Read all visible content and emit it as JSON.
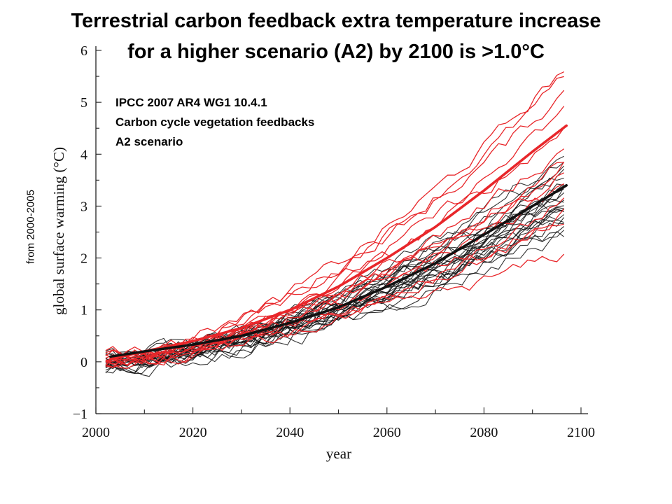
{
  "chart_data": {
    "type": "line",
    "title_lines": [
      "Terrestrial carbon feedback extra temperature increase",
      "for a higher scenario (A2) by 2100 is >1.0°C"
    ],
    "annotation_lines": [
      "IPCC 2007 AR4 WG1 10.4.1",
      "Carbon cycle vegetation feedbacks",
      "A2 scenario"
    ],
    "side_note": "from 2000-2005",
    "xlabel": "year",
    "ylabel": "global surface warming (°C)",
    "xlim": [
      2000,
      2100
    ],
    "ylim": [
      -1,
      6
    ],
    "x_ticks": [
      2000,
      2020,
      2040,
      2060,
      2080,
      2100
    ],
    "y_ticks": [
      -1,
      0,
      1,
      2,
      3,
      4,
      5,
      6
    ],
    "grid": false,
    "colors": {
      "with_feedback": "#e8262a",
      "without_feedback": "#111111"
    },
    "series": [
      {
        "x": [
          2003,
          2010,
          2020,
          2030,
          2040,
          2050,
          2060,
          2070,
          2080,
          2090,
          2097
        ],
        "y": [
          0.05,
          0.2,
          0.4,
          0.65,
          1.0,
          1.45,
          2.0,
          2.6,
          3.3,
          4.05,
          4.55
        ],
        "color": "#e8262a",
        "role": "mean"
      },
      {
        "x": [
          2003,
          2010,
          2020,
          2030,
          2040,
          2050,
          2060,
          2070,
          2080,
          2090,
          2097
        ],
        "y": [
          0.1,
          0.2,
          0.33,
          0.5,
          0.75,
          1.05,
          1.45,
          1.9,
          2.45,
          3.0,
          3.4
        ],
        "color": "#111111",
        "role": "mean"
      }
    ],
    "ensemble": {
      "red_end_values": [
        5.7,
        5.5,
        5.25,
        4.85,
        4.55,
        4.15,
        3.95,
        3.8,
        3.65,
        3.4,
        3.1,
        2.85,
        2.75,
        2.1
      ],
      "black_end_values": [
        4.05,
        3.95,
        3.75,
        3.6,
        3.55,
        3.5,
        3.45,
        3.4,
        3.35,
        3.3,
        3.25,
        3.2,
        3.15,
        3.1,
        3.05,
        3.0,
        2.95,
        2.9,
        2.85,
        2.8,
        2.75,
        2.7,
        2.6,
        2.5
      ]
    }
  }
}
